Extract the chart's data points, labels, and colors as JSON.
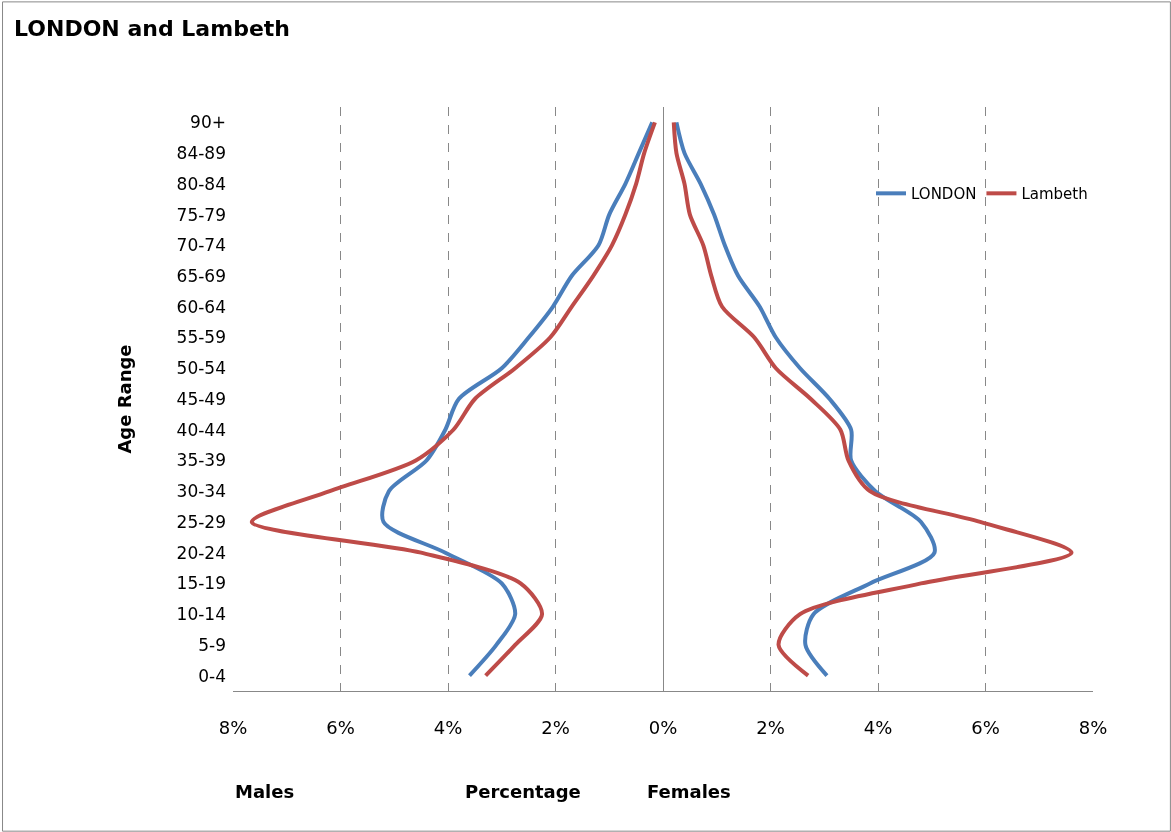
{
  "chart_data": {
    "type": "line",
    "title": "LONDON and Lambeth",
    "ylabel": "Age Range",
    "xlabel": "Percentage",
    "orientation": "horizontal",
    "annotations": [
      "Males",
      "Females"
    ],
    "categories": [
      "90+",
      "84-89",
      "80-84",
      "75-79",
      "70-74",
      "65-69",
      "60-64",
      "55-59",
      "50-54",
      "45-49",
      "40-44",
      "35-39",
      "30-34",
      "25-29",
      "20-24",
      "15-19",
      "10-14",
      "5-9",
      "0-4"
    ],
    "series": [
      {
        "name": "LONDON",
        "color": "#4a7ebb",
        "values": [
          -0.2,
          -0.45,
          -0.7,
          -1.0,
          -1.2,
          -1.7,
          -2.05,
          -2.5,
          -3.0,
          -3.8,
          -4.05,
          -4.4,
          -5.1,
          -5.2,
          -4.05,
          -3.0,
          -2.75,
          -3.1,
          -3.6
        ]
      },
      {
        "color": "#4a7ebb",
        "values": [
          0.25,
          0.4,
          0.7,
          0.95,
          1.15,
          1.4,
          1.8,
          2.1,
          2.55,
          3.1,
          3.5,
          3.5,
          3.95,
          4.8,
          5.05,
          3.85,
          2.8,
          2.65,
          3.05
        ]
      },
      {
        "name": "Lambeth",
        "color": "#be4b48",
        "values": [
          -0.15,
          -0.35,
          -0.5,
          -0.7,
          -0.95,
          -1.3,
          -1.7,
          -2.1,
          -2.75,
          -3.5,
          -3.9,
          -4.6,
          -6.2,
          -7.65,
          -4.5,
          -2.65,
          -2.25,
          -2.75,
          -3.3
        ]
      },
      {
        "color": "#be4b48",
        "values": [
          0.2,
          0.25,
          0.4,
          0.5,
          0.75,
          0.9,
          1.1,
          1.7,
          2.1,
          2.75,
          3.3,
          3.45,
          3.85,
          5.9,
          7.6,
          4.8,
          2.55,
          2.15,
          2.7
        ]
      }
    ],
    "xlim": [
      -8,
      8
    ],
    "xticks": [
      {
        "value": -8,
        "label": "8%"
      },
      {
        "value": -6,
        "label": "6%"
      },
      {
        "value": -4,
        "label": "4%"
      },
      {
        "value": -2,
        "label": "2%"
      },
      {
        "value": 0,
        "label": "0%"
      },
      {
        "value": 2,
        "label": "2%"
      },
      {
        "value": 4,
        "label": "4%"
      },
      {
        "value": 6,
        "label": "6%"
      },
      {
        "value": 8,
        "label": "8%"
      }
    ],
    "grid": "x",
    "legend": "top right",
    "marker": "none",
    "line_style": "solid"
  }
}
